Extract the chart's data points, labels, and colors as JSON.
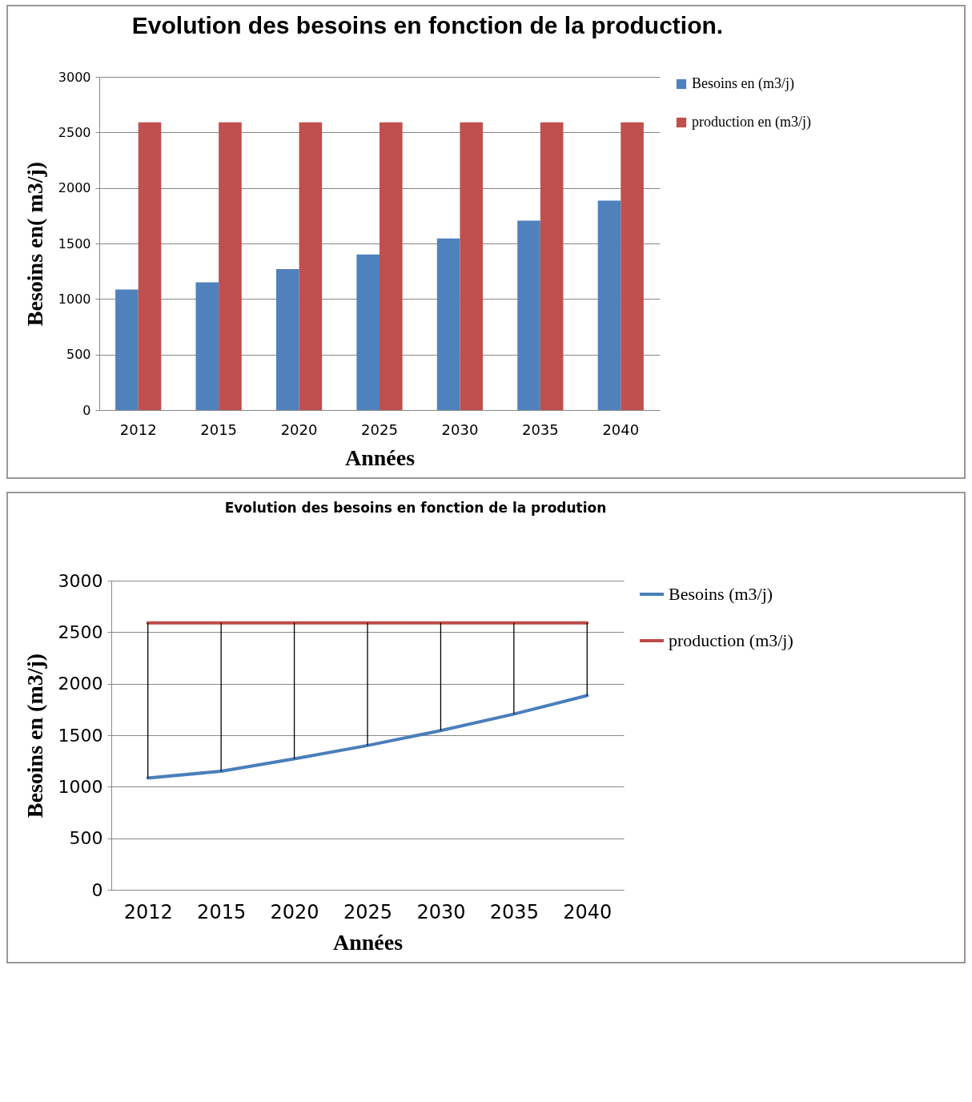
{
  "chart_data": [
    {
      "type": "bar",
      "title": "Evolution des besoins en fonction de la production.",
      "xlabel": "Années",
      "ylabel": "Besoins en( m3/j)",
      "categories": [
        "2012",
        "2015",
        "2020",
        "2025",
        "2030",
        "2035",
        "2040"
      ],
      "series": [
        {
          "name": "Besoins en (m3/j)",
          "color": "#4f81bd",
          "values": [
            1085,
            1150,
            1270,
            1400,
            1545,
            1705,
            1885
          ]
        },
        {
          "name": "production en (m3/j)",
          "color": "#c0504d",
          "values": [
            2590,
            2590,
            2590,
            2590,
            2590,
            2590,
            2590
          ]
        }
      ],
      "ylim": [
        0,
        3000
      ],
      "yticks": [
        0,
        500,
        1000,
        1500,
        2000,
        2500,
        3000
      ],
      "grid": "y",
      "legend": "right"
    },
    {
      "type": "line",
      "title": "Evolution des besoins en fonction de la prodution",
      "xlabel": "Années",
      "ylabel": "Besoins en (m3/j)",
      "categories": [
        "2012",
        "2015",
        "2020",
        "2025",
        "2030",
        "2035",
        "2040"
      ],
      "series": [
        {
          "name": "Besoins (m3/j)",
          "color": "#4a7ebb",
          "values": [
            1085,
            1150,
            1270,
            1400,
            1545,
            1705,
            1885
          ],
          "errors": [
            [
              1085,
              2590
            ],
            [
              1150,
              2590
            ],
            [
              1270,
              2590
            ],
            [
              1400,
              2590
            ],
            [
              1545,
              2590
            ],
            [
              1705,
              2590
            ],
            [
              1885,
              2590
            ]
          ]
        },
        {
          "name": "production (m3/j)",
          "color": "#be4b48",
          "values": [
            2590,
            2590,
            2590,
            2590,
            2590,
            2590,
            2590
          ]
        }
      ],
      "ylim": [
        0,
        3000
      ],
      "yticks": [
        0,
        500,
        1000,
        1500,
        2000,
        2500,
        3000
      ],
      "grid": "y",
      "legend": "right"
    }
  ]
}
